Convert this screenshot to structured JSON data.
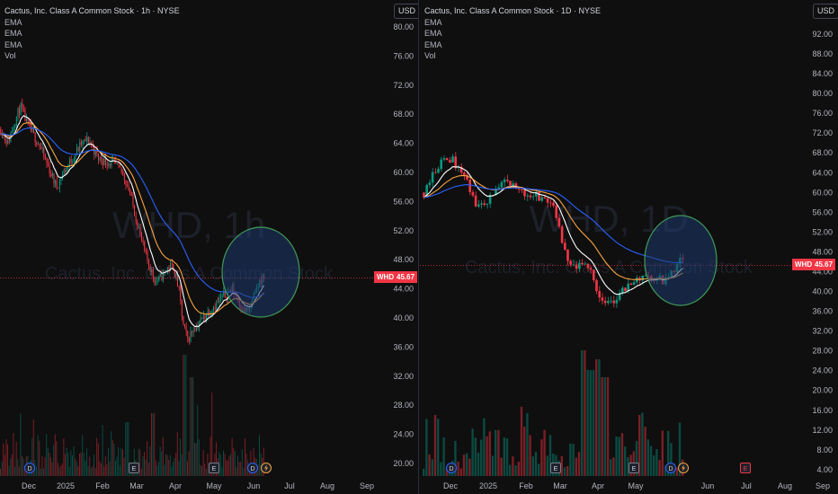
{
  "colors": {
    "bg": "#0f0f0f",
    "up": "#089981",
    "down": "#f23645",
    "ema_fast": "#ffffff",
    "ema_mid": "#f7a441",
    "ema_slow": "#2962ff",
    "circle_fill": "#1e3a6e",
    "circle_stroke": "#3f9b5a"
  },
  "left": {
    "title": "Cactus, Inc. Class A Common Stock · 1h · NYSE",
    "legend": [
      "EMA",
      "EMA",
      "EMA",
      "Vol"
    ],
    "currency": "USD",
    "symbol_tag": "WHD",
    "last_price": "45.67",
    "watermark_symbol": "WHD, 1h",
    "watermark_name": "Cactus, Inc. Class A Common Stock",
    "y_ticks": [
      "80.00",
      "76.00",
      "72.00",
      "68.00",
      "64.00",
      "60.00",
      "56.00",
      "52.00",
      "48.00",
      "44.00",
      "40.00",
      "36.00",
      "32.00",
      "28.00",
      "24.00",
      "20.00"
    ],
    "x_ticks": [
      "Dec",
      "2025",
      "Feb",
      "Mar",
      "Apr",
      "May",
      "Jun",
      "Jul",
      "Aug",
      "Sep"
    ],
    "markers": [
      "D",
      "E",
      "E",
      "D"
    ]
  },
  "right": {
    "title": "Cactus, Inc. Class A Common Stock · 1D · NYSE",
    "legend": [
      "EMA",
      "EMA",
      "EMA",
      "Vol"
    ],
    "currency": "USD",
    "symbol_tag": "WHD",
    "last_price": "45.67",
    "watermark_symbol": "WHD, 1D",
    "watermark_name": "Cactus, Inc. Class A Common Stock",
    "y_ticks": [
      "92.00",
      "88.00",
      "84.00",
      "80.00",
      "76.00",
      "72.00",
      "68.00",
      "64.00",
      "60.00",
      "56.00",
      "52.00",
      "48.00",
      "44.00",
      "40.00",
      "36.00",
      "32.00",
      "28.00",
      "24.00",
      "20.00",
      "16.00",
      "12.00",
      "8.00",
      "4.00"
    ],
    "x_ticks": [
      "Dec",
      "2025",
      "Feb",
      "Mar",
      "Apr",
      "May",
      "Jun",
      "Jul",
      "Aug",
      "Sep"
    ],
    "markers": [
      "D",
      "E",
      "E",
      "D",
      "E"
    ]
  }
}
